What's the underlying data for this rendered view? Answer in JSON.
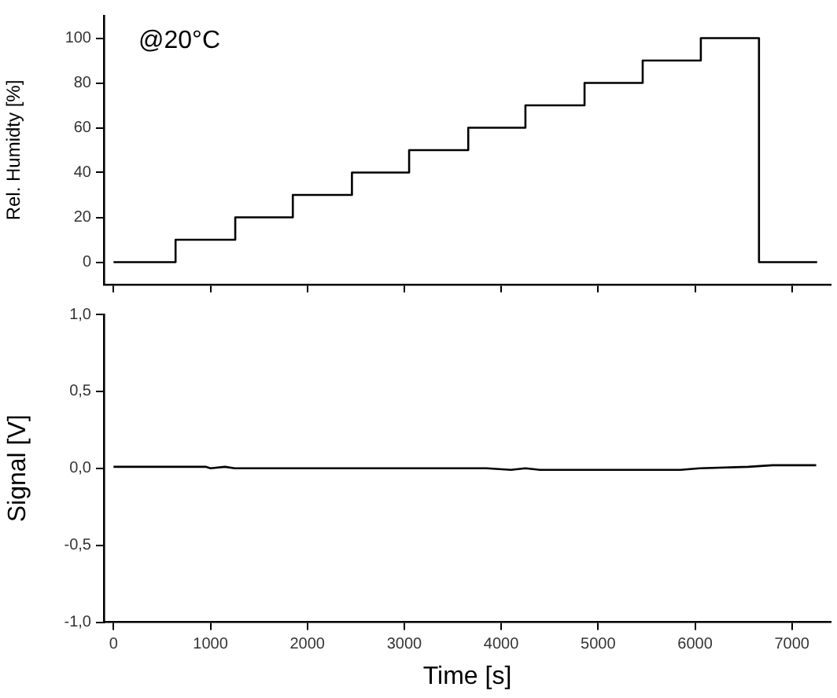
{
  "chart_data": [
    {
      "type": "step",
      "ylabel": "Rel. Humidty [%]",
      "annotations": [
        "@20°C"
      ],
      "x": [
        0,
        640,
        1256,
        1850,
        2460,
        3050,
        3660,
        4250,
        4860,
        5460,
        6060,
        6660,
        7260
      ],
      "series": [
        {
          "color": "#000000",
          "values": [
            0,
            10,
            20,
            30,
            40,
            50,
            60,
            70,
            80,
            90,
            100,
            0,
            0
          ]
        }
      ],
      "xlim": [
        -100,
        7400
      ],
      "xticks": [
        {
          "value": 0,
          "label": null
        },
        {
          "value": 1000,
          "label": null
        },
        {
          "value": 2000,
          "label": null
        },
        {
          "value": 3000,
          "label": null
        },
        {
          "value": 4000,
          "label": null
        },
        {
          "value": 5000,
          "label": null
        },
        {
          "value": 6000,
          "label": null
        },
        {
          "value": 7000,
          "label": null
        }
      ],
      "ylim": [
        -10,
        110
      ],
      "yticks": [
        0,
        20,
        40,
        60,
        80,
        100
      ],
      "tick_labels": "y",
      "grid": false
    },
    {
      "type": "line",
      "xlabel": "Time [s]",
      "ylabel": "Signal [V]",
      "x": [
        0,
        150,
        950,
        1000,
        1150,
        1250,
        1500,
        3600,
        3850,
        4100,
        4250,
        4400,
        4800,
        5750,
        5850,
        6050,
        6550,
        6800,
        7250
      ],
      "series": [
        {
          "color": "#000000",
          "values": [
            0.01,
            0.01,
            0.01,
            0.0,
            0.01,
            0.0,
            0.0,
            0.0,
            0.0,
            -0.01,
            0.0,
            -0.01,
            -0.01,
            -0.01,
            -0.01,
            0.0,
            0.01,
            0.02,
            0.02
          ]
        }
      ],
      "xlim": [
        -100,
        7400
      ],
      "xticks": [
        0,
        1000,
        2000,
        3000,
        4000,
        5000,
        6000,
        7000
      ],
      "ylim": [
        -1,
        1
      ],
      "yticks": [
        {
          "value": -1,
          "label": "-1,0"
        },
        {
          "value": -0.5,
          "label": "-0,5"
        },
        {
          "value": 0,
          "label": "0,0"
        },
        {
          "value": 0.5,
          "label": "0,5"
        },
        {
          "value": 1,
          "label": "1,0"
        }
      ],
      "grid": false
    }
  ]
}
